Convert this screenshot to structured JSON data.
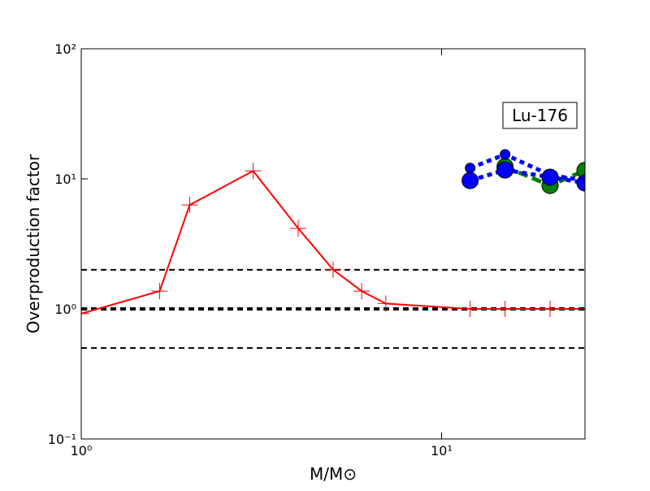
{
  "chart_data": {
    "type": "line",
    "xlabel": "M/M⊙",
    "ylabel": "Overproduction factor",
    "annotation": "Lu-176",
    "xscale": "log",
    "yscale": "log",
    "xlim": [
      1,
      25
    ],
    "ylim": [
      0.1,
      100
    ],
    "xticks": [
      {
        "value": 1,
        "label": "10⁰"
      },
      {
        "value": 10,
        "label": "10¹"
      }
    ],
    "yticks": [
      {
        "value": 0.1,
        "label": "10⁻¹"
      },
      {
        "value": 1,
        "label": "10⁰"
      },
      {
        "value": 10,
        "label": "10¹"
      },
      {
        "value": 100,
        "label": "10²"
      }
    ],
    "hlines": [
      2,
      1,
      0.5
    ],
    "series": [
      {
        "color": "#ff0000",
        "marker": "plus",
        "linestyle": "solid",
        "x": [
          1,
          1.65,
          2,
          3,
          4,
          5,
          6,
          7,
          12,
          15,
          20,
          25
        ],
        "values": [
          0.92,
          1.37,
          6.3,
          11.5,
          4.16,
          2.0,
          1.37,
          1.1,
          1.0,
          1.0,
          1.0,
          1.0
        ]
      },
      {
        "color": "#008000",
        "marker": "circle-large",
        "linestyle": "dashed",
        "x": [
          15,
          20,
          25
        ],
        "values": [
          12.4,
          8.9,
          11.6
        ]
      },
      {
        "color": "#0000ff",
        "marker": "circle-small",
        "linestyle": "dotted",
        "x": [
          12,
          15,
          20,
          25
        ],
        "values": [
          12.1,
          15.4,
          10.7,
          9.7
        ]
      },
      {
        "color": "#0000ff",
        "marker": "circle-large",
        "linestyle": "dotted",
        "x": [
          12,
          15,
          20,
          25
        ],
        "values": [
          9.7,
          11.7,
          10.3,
          9.3
        ]
      }
    ]
  }
}
